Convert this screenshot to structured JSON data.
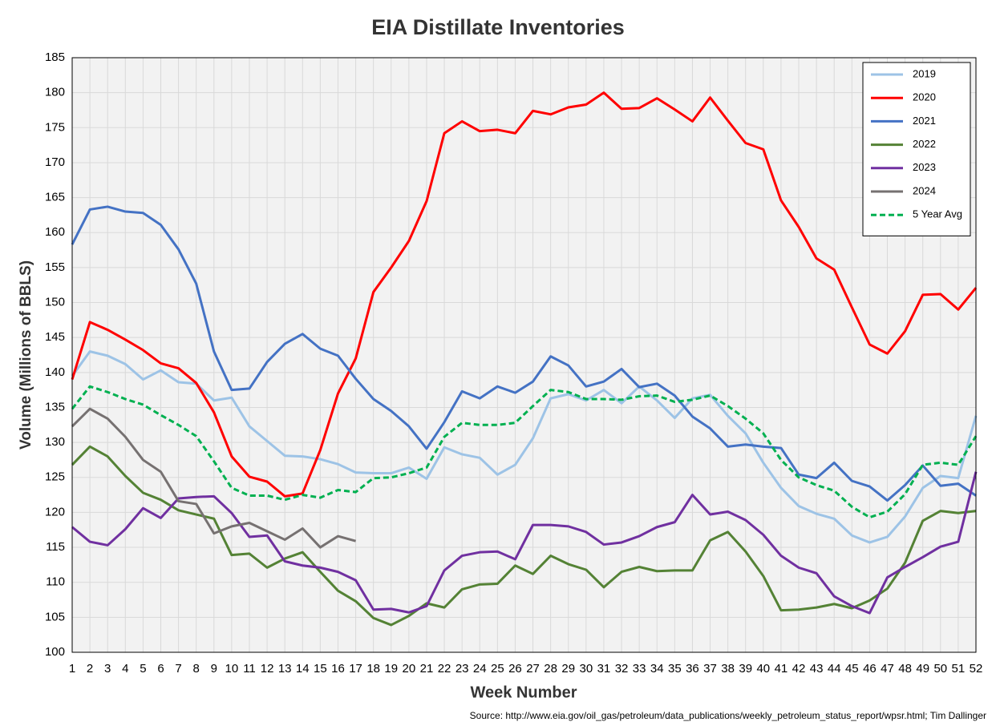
{
  "chart_data": {
    "type": "line",
    "title": "EIA Distillate Inventories",
    "x_label": "Week Number",
    "y_label": "Volume (Millions of BBLS)",
    "source": "Source: http://www.eia.gov/oil_gas/petroleum/data_publications/weekly_petroleum_status_report/wpsr.html; Tim Dallinger",
    "x": [
      1,
      2,
      3,
      4,
      5,
      6,
      7,
      8,
      9,
      10,
      11,
      12,
      13,
      14,
      15,
      16,
      17,
      18,
      19,
      20,
      21,
      22,
      23,
      24,
      25,
      26,
      27,
      28,
      29,
      30,
      31,
      32,
      33,
      34,
      35,
      36,
      37,
      38,
      39,
      40,
      41,
      42,
      43,
      44,
      45,
      46,
      47,
      48,
      49,
      50,
      51,
      52
    ],
    "xlim": [
      1,
      52
    ],
    "xticks": [
      1,
      2,
      3,
      4,
      5,
      6,
      7,
      8,
      9,
      10,
      11,
      12,
      13,
      14,
      15,
      16,
      17,
      18,
      19,
      20,
      21,
      22,
      23,
      24,
      25,
      26,
      27,
      28,
      29,
      30,
      31,
      32,
      33,
      34,
      35,
      36,
      37,
      38,
      39,
      40,
      41,
      42,
      43,
      44,
      45,
      46,
      47,
      48,
      49,
      50,
      51,
      52
    ],
    "ylim": [
      100,
      185
    ],
    "yticks": [
      100,
      105,
      110,
      115,
      120,
      125,
      130,
      135,
      140,
      145,
      150,
      155,
      160,
      165,
      170,
      175,
      180,
      185
    ],
    "grid": true,
    "legend": "top-right",
    "series": [
      {
        "name": "2019",
        "color": "#9dc3e6",
        "dashed": false,
        "values": [
          139.5,
          143,
          142.4,
          141.2,
          139,
          140.3,
          138.6,
          138.4,
          136,
          136.4,
          132.3,
          130.2,
          128.1,
          128,
          127.6,
          126.9,
          125.7,
          125.6,
          125.6,
          126.4,
          124.8,
          129.3,
          128.3,
          127.8,
          125.4,
          126.8,
          130.6,
          136.3,
          136.9,
          136,
          137.5,
          135.6,
          138,
          136,
          133.5,
          136.3,
          136.8,
          133.8,
          131.3,
          127.1,
          123.5,
          120.9,
          119.8,
          119.1,
          116.7,
          115.7,
          116.5,
          119.4,
          123.5,
          125.2,
          124.9,
          133.8
        ]
      },
      {
        "name": "2020",
        "color": "#ff0000",
        "dashed": false,
        "values": [
          139,
          147.2,
          146.1,
          144.7,
          143.2,
          141.3,
          140.6,
          138.5,
          134.3,
          128,
          125.1,
          124.4,
          122.3,
          122.7,
          128.9,
          137,
          142,
          151.5,
          155,
          158.8,
          164.5,
          174.2,
          175.9,
          174.5,
          174.7,
          174.2,
          177.4,
          176.9,
          177.9,
          178.3,
          180,
          177.7,
          177.8,
          179.2,
          177.6,
          175.9,
          179.3,
          176,
          172.8,
          171.9,
          164.6,
          160.8,
          156.3,
          154.7,
          149.3,
          144,
          142.7,
          145.9,
          151.1,
          151.2,
          149,
          152.1
        ]
      },
      {
        "name": "2021",
        "color": "#4472c4",
        "dashed": false,
        "values": [
          158.3,
          163.3,
          163.7,
          163,
          162.8,
          161.1,
          157.6,
          152.7,
          143,
          137.5,
          137.7,
          141.5,
          144.1,
          145.5,
          143.4,
          142.4,
          139.1,
          136.2,
          134.5,
          132.3,
          129.1,
          132.9,
          137.3,
          136.3,
          138,
          137.1,
          138.7,
          142.3,
          141,
          138,
          138.7,
          140.5,
          137.9,
          138.4,
          136.7,
          133.7,
          132,
          129.4,
          129.7,
          129.4,
          129.2,
          125.4,
          124.9,
          127.1,
          124.5,
          123.7,
          121.7,
          123.9,
          126.7,
          123.8,
          124.1,
          122.4
        ]
      },
      {
        "name": "2022",
        "color": "#548235",
        "dashed": false,
        "values": [
          126.8,
          129.4,
          128,
          125.2,
          122.8,
          121.8,
          120.3,
          119.7,
          119.1,
          113.9,
          114.1,
          112.1,
          113.4,
          114.3,
          111.5,
          108.8,
          107.3,
          104.9,
          103.9,
          105.2,
          107,
          106.4,
          109,
          109.7,
          109.8,
          112.4,
          111.2,
          113.8,
          112.6,
          111.8,
          109.3,
          111.5,
          112.2,
          111.6,
          111.7,
          111.7,
          116,
          117.2,
          114.4,
          110.9,
          106,
          106.1,
          106.4,
          106.9,
          106.3,
          107.4,
          109.1,
          112.8,
          118.8,
          120.2,
          119.9,
          120.2
        ]
      },
      {
        "name": "2023",
        "color": "#7030a0",
        "dashed": false,
        "values": [
          117.9,
          115.8,
          115.3,
          117.6,
          120.6,
          119.2,
          122,
          122.2,
          122.3,
          119.9,
          116.5,
          116.7,
          113,
          112.4,
          112.1,
          111.5,
          110.3,
          106.1,
          106.2,
          105.7,
          106.6,
          111.7,
          113.8,
          114.3,
          114.4,
          113.3,
          118.2,
          118.2,
          118,
          117.2,
          115.4,
          115.7,
          116.6,
          117.9,
          118.6,
          122.5,
          119.7,
          120.1,
          118.9,
          116.8,
          113.8,
          112.1,
          111.3,
          108,
          106.6,
          105.6,
          110.7,
          112.2,
          113.6,
          115.1,
          115.8,
          125.8
        ]
      },
      {
        "name": "2024",
        "color": "#767171",
        "dashed": false,
        "values": [
          132.3,
          134.8,
          133.4,
          130.8,
          127.5,
          125.8,
          121.6,
          121.2,
          117,
          118,
          118.5,
          117.3,
          116.1,
          117.7,
          115,
          116.6,
          115.9,
          null,
          null,
          null,
          null,
          null,
          null,
          null,
          null,
          null,
          null,
          null,
          null,
          null,
          null,
          null,
          null,
          null,
          null,
          null,
          null,
          null,
          null,
          null,
          null,
          null,
          null,
          null,
          null,
          null,
          null,
          null,
          null,
          null,
          null,
          null
        ]
      },
      {
        "name": "5 Year Avg",
        "color": "#00b050",
        "dashed": true,
        "values": [
          134.8,
          138,
          137.2,
          136.2,
          135.4,
          133.9,
          132.5,
          130.9,
          127.3,
          123.5,
          122.4,
          122.4,
          121.8,
          122.5,
          122.1,
          123.2,
          122.9,
          124.9,
          125,
          125.6,
          126.4,
          130.8,
          132.8,
          132.5,
          132.5,
          132.8,
          135.2,
          137.5,
          137.2,
          136.2,
          136.2,
          136.1,
          136.6,
          136.7,
          135.8,
          136.1,
          136.7,
          135.2,
          133.4,
          131.3,
          127.5,
          125,
          123.9,
          123.1,
          120.8,
          119.3,
          120.1,
          122.6,
          126.8,
          127.1,
          126.8,
          130.9
        ]
      }
    ]
  }
}
